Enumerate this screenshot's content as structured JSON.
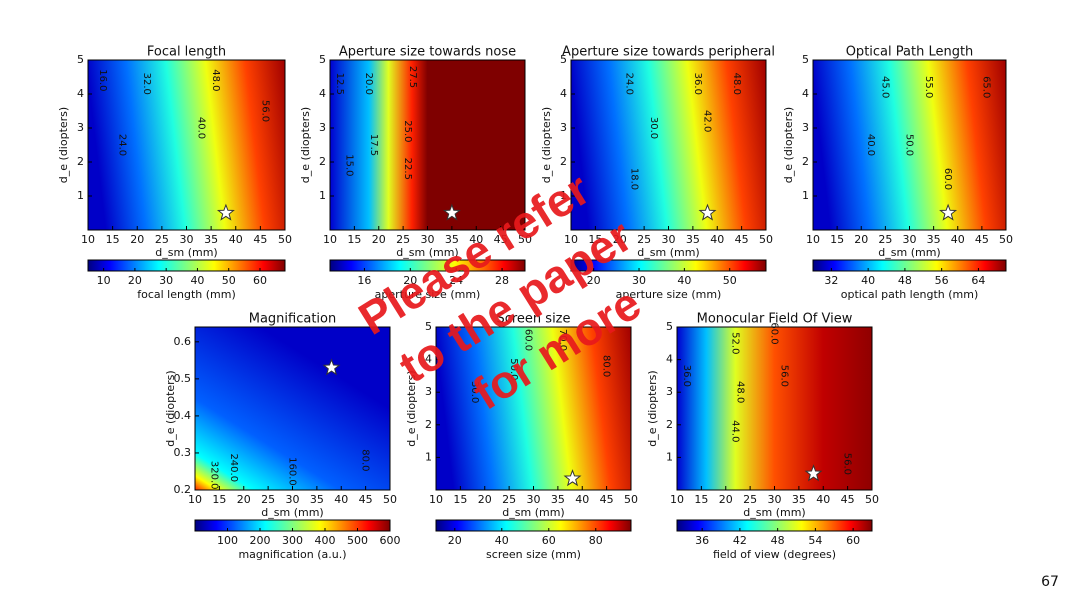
{
  "chart_data": [
    {
      "type": "contour",
      "title": "Focal length",
      "xlabel": "d_sm (mm)",
      "ylabel": "d_e (diopters)",
      "xlim": [
        10,
        50
      ],
      "ylim": [
        0,
        5
      ],
      "xticks": [
        10,
        15,
        20,
        25,
        30,
        35,
        40,
        45,
        50
      ],
      "yticks": [
        1,
        2,
        3,
        4,
        5
      ],
      "colorbar_label": "focal length (mm)",
      "clim": [
        5,
        68
      ],
      "cticks": [
        10,
        20,
        30,
        40,
        50,
        60
      ],
      "contour_labels": [
        {
          "text": "16.0",
          "x": 13,
          "y": 4.4
        },
        {
          "text": "24.0",
          "x": 17,
          "y": 2.5
        },
        {
          "text": "32.0",
          "x": 22,
          "y": 4.3
        },
        {
          "text": "40.0",
          "x": 33,
          "y": 3.0
        },
        {
          "text": "48.0",
          "x": 36,
          "y": 4.4
        },
        {
          "text": "56.0",
          "x": 46,
          "y": 3.5
        }
      ],
      "marker": {
        "x": 38,
        "y": 0.5
      }
    },
    {
      "type": "contour",
      "title": "Aperture size towards nose",
      "xlabel": "d_sm (mm)",
      "ylabel": "d_e (diopters)",
      "xlim": [
        10,
        50
      ],
      "ylim": [
        0,
        5
      ],
      "xticks": [
        10,
        15,
        20,
        25,
        30,
        35,
        40,
        45,
        50
      ],
      "yticks": [
        1,
        2,
        3,
        4,
        5
      ],
      "colorbar_label": "aperture size (mm)",
      "clim": [
        13,
        30
      ],
      "cticks": [
        16,
        20,
        24,
        28
      ],
      "contour_labels": [
        {
          "text": "12.5",
          "x": 12,
          "y": 4.3
        },
        {
          "text": "20.0",
          "x": 18,
          "y": 4.3
        },
        {
          "text": "17.5",
          "x": 19,
          "y": 2.5
        },
        {
          "text": "15.0",
          "x": 14,
          "y": 1.9
        },
        {
          "text": "27.5",
          "x": 27,
          "y": 4.5
        },
        {
          "text": "25.0",
          "x": 26,
          "y": 2.9
        },
        {
          "text": "22.5",
          "x": 26,
          "y": 1.8
        }
      ],
      "marker": {
        "x": 35,
        "y": 0.5
      }
    },
    {
      "type": "contour",
      "title": "Aperture size towards peripheral",
      "xlabel": "d_sm (mm)",
      "ylabel": "d_e (diopters)",
      "xlim": [
        10,
        50
      ],
      "ylim": [
        0,
        5
      ],
      "xticks": [
        10,
        15,
        20,
        25,
        30,
        35,
        40,
        45,
        50
      ],
      "yticks": [
        1,
        2,
        3,
        4,
        5
      ],
      "colorbar_label": "aperture size (mm)",
      "clim": [
        15,
        58
      ],
      "cticks": [
        20,
        30,
        40,
        50
      ],
      "contour_labels": [
        {
          "text": "24.0",
          "x": 22,
          "y": 4.3
        },
        {
          "text": "30.0",
          "x": 27,
          "y": 3.0
        },
        {
          "text": "36.0",
          "x": 36,
          "y": 4.3
        },
        {
          "text": "42.0",
          "x": 38,
          "y": 3.2
        },
        {
          "text": "48.0",
          "x": 44,
          "y": 4.3
        },
        {
          "text": "18.0",
          "x": 23,
          "y": 1.5
        }
      ],
      "marker": {
        "x": 38,
        "y": 0.5
      }
    },
    {
      "type": "contour",
      "title": "Optical Path Length",
      "xlabel": "d_sm (mm)",
      "ylabel": "d_e (diopters)",
      "xlim": [
        10,
        50
      ],
      "ylim": [
        0,
        5
      ],
      "xticks": [
        10,
        15,
        20,
        25,
        30,
        35,
        40,
        45,
        50
      ],
      "yticks": [
        1,
        2,
        3,
        4,
        5
      ],
      "colorbar_label": "optical path length (mm)",
      "clim": [
        28,
        70
      ],
      "cticks": [
        32,
        40,
        48,
        56,
        64
      ],
      "contour_labels": [
        {
          "text": "45.0",
          "x": 25,
          "y": 4.2
        },
        {
          "text": "55.0",
          "x": 34,
          "y": 4.2
        },
        {
          "text": "40.0",
          "x": 22,
          "y": 2.5
        },
        {
          "text": "50.0",
          "x": 30,
          "y": 2.5
        },
        {
          "text": "65.0",
          "x": 46,
          "y": 4.2
        },
        {
          "text": "60.0",
          "x": 38,
          "y": 1.5
        }
      ],
      "marker": {
        "x": 38,
        "y": 0.5
      }
    },
    {
      "type": "contour",
      "title": "Magnification",
      "xlabel": "d_sm (mm)",
      "ylabel": "d_e (diopters)",
      "xlim": [
        10,
        50
      ],
      "ylim": [
        0.2,
        0.64
      ],
      "xticks": [
        10,
        15,
        20,
        25,
        30,
        35,
        40,
        45,
        50
      ],
      "yticks": [
        0.2,
        0.3,
        0.4,
        0.5,
        0.6
      ],
      "colorbar_label": "magnification (a.u.)",
      "clim": [
        0,
        600
      ],
      "cticks": [
        100,
        200,
        300,
        400,
        500,
        600
      ],
      "contour_labels": [
        {
          "text": "80.0",
          "x": 45,
          "y": 0.28
        },
        {
          "text": "160.0",
          "x": 30,
          "y": 0.25
        },
        {
          "text": "240.0",
          "x": 18,
          "y": 0.26
        },
        {
          "text": "320.0",
          "x": 14,
          "y": 0.24
        }
      ],
      "marker": {
        "x": 38,
        "y": 0.53
      }
    },
    {
      "type": "contour",
      "title": "Screen size",
      "xlabel": "d_sm (mm)",
      "ylabel": "d_e (diopters)",
      "xlim": [
        10,
        50
      ],
      "ylim": [
        0,
        5
      ],
      "xticks": [
        10,
        15,
        20,
        25,
        30,
        35,
        40,
        45,
        50
      ],
      "yticks": [
        1,
        2,
        3,
        4,
        5
      ],
      "colorbar_label": "screen size (mm)",
      "clim": [
        12,
        95
      ],
      "cticks": [
        20,
        40,
        60,
        80
      ],
      "contour_labels": [
        {
          "text": "30.0",
          "x": 18,
          "y": 3.0
        },
        {
          "text": "50.0",
          "x": 26,
          "y": 3.7
        },
        {
          "text": "60.0",
          "x": 29,
          "y": 4.6
        },
        {
          "text": "70.0",
          "x": 36,
          "y": 4.6
        },
        {
          "text": "80.0",
          "x": 45,
          "y": 3.8
        }
      ],
      "marker": {
        "x": 38,
        "y": 0.35
      }
    },
    {
      "type": "contour",
      "title": "Monocular Field Of View",
      "xlabel": "d_sm (mm)",
      "ylabel": "d_e (diopters)",
      "xlim": [
        10,
        50
      ],
      "ylim": [
        0,
        5
      ],
      "xticks": [
        10,
        15,
        20,
        25,
        30,
        35,
        40,
        45,
        50
      ],
      "yticks": [
        1,
        2,
        3,
        4,
        5
      ],
      "colorbar_label": "field of view (degrees)",
      "clim": [
        32,
        63
      ],
      "cticks": [
        36,
        42,
        48,
        54,
        60
      ],
      "contour_labels": [
        {
          "text": "36.0",
          "x": 12,
          "y": 3.5
        },
        {
          "text": "44.0",
          "x": 22,
          "y": 1.8
        },
        {
          "text": "48.0",
          "x": 23,
          "y": 3.0
        },
        {
          "text": "52.0",
          "x": 22,
          "y": 4.5
        },
        {
          "text": "56.0",
          "x": 32,
          "y": 3.5
        },
        {
          "text": "60.0",
          "x": 30,
          "y": 4.8
        },
        {
          "text": "56.0",
          "x": 45,
          "y": 0.8
        }
      ],
      "marker": {
        "x": 38,
        "y": 0.5
      }
    }
  ],
  "overlay": [
    "Please refer",
    "to the paper",
    "for more"
  ],
  "page_number": "67"
}
